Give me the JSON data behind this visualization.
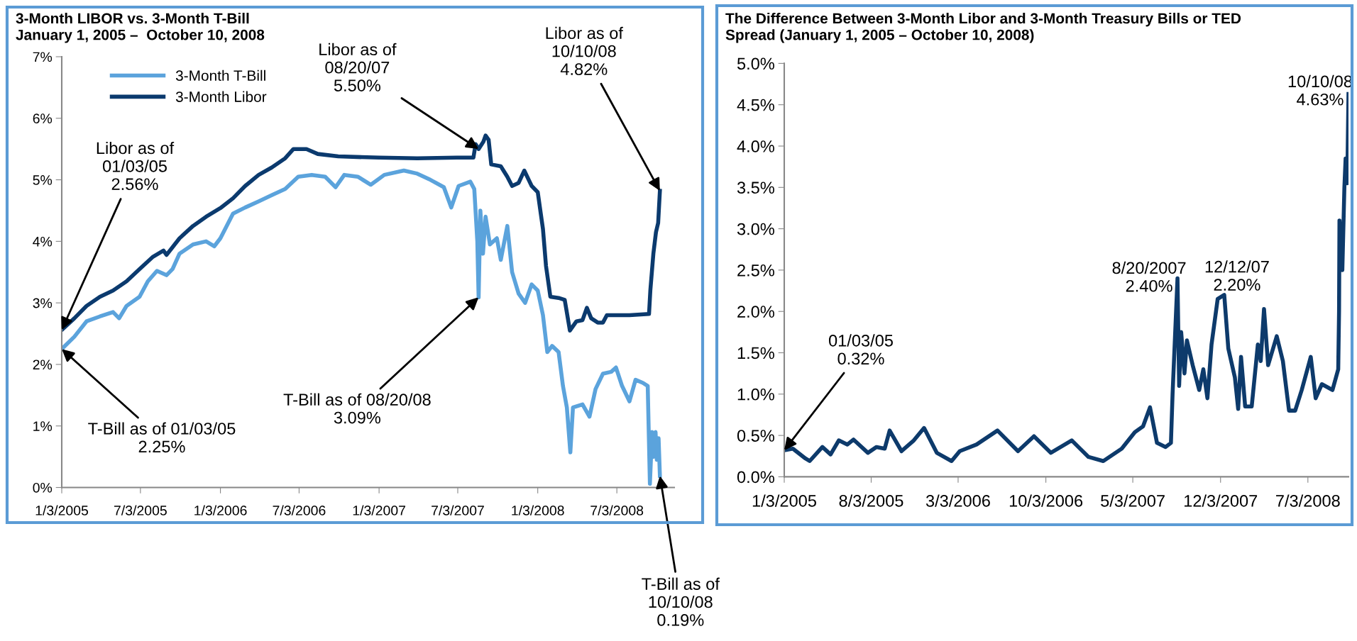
{
  "chart_data": [
    {
      "type": "line",
      "title": "3-Month LIBOR vs. 3-Month T-Bill",
      "subtitle": "January 1, 2005 –  October 10, 2008",
      "legend": "top left",
      "grid": false,
      "marker": "none",
      "line_style": "solid",
      "xlim": [
        "2005-01-03",
        "2008-11-12"
      ],
      "xticks": [
        {
          "value": "2005-01-03",
          "label": "1/3/2005"
        },
        {
          "value": "2005-07-03",
          "label": "7/3/2005"
        },
        {
          "value": "2006-01-03",
          "label": "1/3/2006"
        },
        {
          "value": "2006-07-03",
          "label": "7/3/2006"
        },
        {
          "value": "2007-01-03",
          "label": "1/3/2007"
        },
        {
          "value": "2007-07-03",
          "label": "7/3/2007"
        },
        {
          "value": "2008-01-03",
          "label": "1/3/2008"
        },
        {
          "value": "2008-07-03",
          "label": "7/3/2008"
        }
      ],
      "ylim": [
        0,
        7
      ],
      "yticks": [
        {
          "value": 0,
          "label": "0%"
        },
        {
          "value": 1,
          "label": "1%"
        },
        {
          "value": 2,
          "label": "2%"
        },
        {
          "value": 3,
          "label": "3%"
        },
        {
          "value": 4,
          "label": "4%"
        },
        {
          "value": 5,
          "label": "5%"
        },
        {
          "value": 6,
          "label": "6%"
        },
        {
          "value": 7,
          "label": "7%"
        }
      ],
      "series": [
        {
          "name": "3-Month T-Bill",
          "color": "#5ba3dc",
          "x": [
            "2005-01-03",
            "2005-02-01",
            "2005-03-01",
            "2005-04-01",
            "2005-05-01",
            "2005-05-15",
            "2005-06-01",
            "2005-07-01",
            "2005-07-20",
            "2005-08-10",
            "2005-09-01",
            "2005-09-15",
            "2005-10-01",
            "2005-11-01",
            "2005-12-01",
            "2005-12-20",
            "2006-01-03",
            "2006-02-01",
            "2006-03-01",
            "2006-04-01",
            "2006-05-01",
            "2006-06-01",
            "2006-07-01",
            "2006-08-01",
            "2006-09-01",
            "2006-09-25",
            "2006-10-15",
            "2006-11-15",
            "2006-12-15",
            "2007-01-15",
            "2007-03-01",
            "2007-04-01",
            "2007-05-01",
            "2007-06-01",
            "2007-06-18",
            "2007-07-05",
            "2007-08-01",
            "2007-08-10",
            "2007-08-17",
            "2007-08-20",
            "2007-08-24",
            "2007-08-30",
            "2007-09-05",
            "2007-09-15",
            "2007-10-01",
            "2007-10-10",
            "2007-10-25",
            "2007-11-05",
            "2007-11-20",
            "2007-12-05",
            "2007-12-20",
            "2008-01-03",
            "2008-01-15",
            "2008-01-25",
            "2008-02-05",
            "2008-02-20",
            "2008-03-01",
            "2008-03-10",
            "2008-03-18",
            "2008-03-24",
            "2008-04-15",
            "2008-05-01",
            "2008-05-15",
            "2008-06-01",
            "2008-06-20",
            "2008-07-01",
            "2008-07-15",
            "2008-08-01",
            "2008-08-15",
            "2008-09-01",
            "2008-09-12",
            "2008-09-17",
            "2008-09-22",
            "2008-09-26",
            "2008-09-30",
            "2008-10-03",
            "2008-10-07",
            "2008-10-10"
          ],
          "values": [
            2.25,
            2.45,
            2.7,
            2.78,
            2.85,
            2.75,
            2.95,
            3.1,
            3.35,
            3.52,
            3.45,
            3.55,
            3.8,
            3.95,
            4.0,
            3.92,
            4.05,
            4.45,
            4.55,
            4.65,
            4.75,
            4.85,
            5.05,
            5.08,
            5.05,
            4.88,
            5.08,
            5.05,
            4.92,
            5.08,
            5.15,
            5.1,
            5.0,
            4.88,
            4.55,
            4.9,
            4.97,
            4.85,
            4.0,
            3.09,
            4.5,
            3.8,
            4.4,
            3.95,
            4.05,
            3.7,
            4.25,
            3.5,
            3.15,
            3.0,
            3.3,
            3.2,
            2.8,
            2.2,
            2.3,
            2.2,
            1.65,
            1.3,
            0.57,
            1.3,
            1.35,
            1.15,
            1.6,
            1.85,
            1.88,
            1.95,
            1.65,
            1.4,
            1.75,
            1.7,
            1.65,
            0.06,
            0.9,
            0.5,
            0.9,
            0.45,
            0.8,
            0.19
          ]
        },
        {
          "name": "3-Month Libor",
          "color": "#0b3a6e",
          "x": [
            "2005-01-03",
            "2005-02-01",
            "2005-03-01",
            "2005-04-01",
            "2005-05-01",
            "2005-06-01",
            "2005-07-01",
            "2005-08-01",
            "2005-08-25",
            "2005-09-01",
            "2005-10-01",
            "2005-11-01",
            "2005-12-01",
            "2006-01-03",
            "2006-02-01",
            "2006-03-01",
            "2006-04-01",
            "2006-05-01",
            "2006-06-01",
            "2006-06-20",
            "2006-07-20",
            "2006-08-15",
            "2006-10-01",
            "2007-01-03",
            "2007-04-01",
            "2007-07-01",
            "2007-08-08",
            "2007-08-13",
            "2007-08-20",
            "2007-08-31",
            "2007-09-05",
            "2007-09-12",
            "2007-09-18",
            "2007-10-10",
            "2007-10-25",
            "2007-11-05",
            "2007-11-20",
            "2007-12-03",
            "2007-12-20",
            "2008-01-03",
            "2008-01-15",
            "2008-01-22",
            "2008-02-01",
            "2008-02-20",
            "2008-03-05",
            "2008-03-17",
            "2008-04-01",
            "2008-04-15",
            "2008-04-25",
            "2008-05-05",
            "2008-05-20",
            "2008-06-01",
            "2008-06-10",
            "2008-07-01",
            "2008-08-01",
            "2008-09-15",
            "2008-09-18",
            "2008-09-25",
            "2008-10-01",
            "2008-10-06",
            "2008-10-10"
          ],
          "values": [
            2.56,
            2.75,
            2.95,
            3.1,
            3.2,
            3.35,
            3.55,
            3.75,
            3.85,
            3.78,
            4.05,
            4.25,
            4.4,
            4.54,
            4.7,
            4.9,
            5.08,
            5.2,
            5.35,
            5.5,
            5.5,
            5.42,
            5.38,
            5.36,
            5.35,
            5.36,
            5.36,
            5.58,
            5.5,
            5.62,
            5.72,
            5.65,
            5.25,
            5.22,
            5.05,
            4.9,
            4.95,
            5.15,
            4.9,
            4.8,
            4.2,
            3.6,
            3.1,
            3.08,
            3.05,
            2.55,
            2.7,
            2.72,
            2.92,
            2.75,
            2.68,
            2.68,
            2.8,
            2.8,
            2.8,
            2.82,
            3.2,
            3.8,
            4.15,
            4.3,
            4.82
          ]
        }
      ],
      "annotations": [
        {
          "text": "Libor as of\n01/03/05\n2.56%",
          "x": "2005-01-03",
          "y": 2.56
        },
        {
          "text": "Libor as of\n08/20/07\n5.50%",
          "x": "2007-08-20",
          "y": 5.5
        },
        {
          "text": "Libor as of\n10/10/08\n4.82%",
          "x": "2008-10-10",
          "y": 4.82
        },
        {
          "text": "T-Bill as of 01/03/05\n2.25%",
          "x": "2005-01-03",
          "y": 2.25
        },
        {
          "text": "T-Bill as of 08/20/08\n3.09%",
          "x": "2007-08-20",
          "y": 3.09
        },
        {
          "text": "T-Bill as of\n10/10/08\n0.19%",
          "x": "2008-10-10",
          "y": 0.19
        }
      ]
    },
    {
      "type": "line",
      "title": "The Difference Between 3-Month Libor and 3-Month Treasury Bills or TED\nSpread (January 1, 2005 – October 10, 2008)",
      "grid": false,
      "legend": false,
      "marker": "none",
      "line_style": "solid",
      "xlim": [
        "2005-01-03",
        "2008-10-10"
      ],
      "xticks": [
        {
          "value": "2005-01-03",
          "label": "1/3/2005"
        },
        {
          "value": "2005-08-03",
          "label": "8/3/2005"
        },
        {
          "value": "2006-03-03",
          "label": "3/3/2006"
        },
        {
          "value": "2006-10-03",
          "label": "10/3/2006"
        },
        {
          "value": "2007-05-03",
          "label": "5/3/2007"
        },
        {
          "value": "2007-12-03",
          "label": "12/3/2007"
        },
        {
          "value": "2008-07-03",
          "label": "7/3/2008"
        }
      ],
      "ylim": [
        0,
        5
      ],
      "yticks": [
        {
          "value": 0,
          "label": "0.0%"
        },
        {
          "value": 0.5,
          "label": "0.5%"
        },
        {
          "value": 1,
          "label": "1.0%"
        },
        {
          "value": 1.5,
          "label": "1.5%"
        },
        {
          "value": 2,
          "label": "2.0%"
        },
        {
          "value": 2.5,
          "label": "2.5%"
        },
        {
          "value": 3,
          "label": "3.0%"
        },
        {
          "value": 3.5,
          "label": "3.5%"
        },
        {
          "value": 4,
          "label": "4.0%"
        },
        {
          "value": 4.5,
          "label": "4.5%"
        },
        {
          "value": 5,
          "label": "5.0%"
        }
      ],
      "series": [
        {
          "color": "#0d3a6b",
          "x": [
            "2005-01-03",
            "2005-01-24",
            "2005-02-24",
            "2005-03-06",
            "2005-04-06",
            "2005-04-26",
            "2005-05-16",
            "2005-06-06",
            "2005-06-21",
            "2005-07-26",
            "2005-08-16",
            "2005-09-05",
            "2005-09-17",
            "2005-10-16",
            "2005-11-15",
            "2005-12-10",
            "2006-01-10",
            "2006-02-15",
            "2006-03-07",
            "2006-04-17",
            "2006-06-07",
            "2006-07-27",
            "2006-09-04",
            "2006-10-15",
            "2006-12-05",
            "2007-01-15",
            "2007-02-20",
            "2007-04-06",
            "2007-05-08",
            "2007-05-28",
            "2007-06-14",
            "2007-07-01",
            "2007-07-22",
            "2007-08-04",
            "2007-08-08",
            "2007-08-20",
            "2007-08-24",
            "2007-08-29",
            "2007-09-06",
            "2007-09-12",
            "2007-09-26",
            "2007-10-12",
            "2007-10-22",
            "2007-11-01",
            "2007-11-11",
            "2007-11-26",
            "2007-12-12",
            "2007-12-22",
            "2008-01-07",
            "2008-01-15",
            "2008-01-22",
            "2008-02-01",
            "2008-02-17",
            "2008-03-03",
            "2008-03-10",
            "2008-03-18",
            "2008-03-28",
            "2008-04-18",
            "2008-05-03",
            "2008-05-18",
            "2008-06-02",
            "2008-06-18",
            "2008-07-10",
            "2008-07-22",
            "2008-08-06",
            "2008-09-01",
            "2008-09-15",
            "2008-09-17",
            "2008-09-18",
            "2008-09-25",
            "2008-09-30",
            "2008-10-03",
            "2008-10-07",
            "2008-10-10"
          ],
          "values": [
            0.32,
            0.34,
            0.22,
            0.19,
            0.36,
            0.27,
            0.44,
            0.39,
            0.45,
            0.29,
            0.36,
            0.34,
            0.56,
            0.31,
            0.44,
            0.59,
            0.29,
            0.19,
            0.31,
            0.39,
            0.56,
            0.31,
            0.49,
            0.29,
            0.44,
            0.24,
            0.19,
            0.34,
            0.54,
            0.61,
            0.84,
            0.41,
            0.36,
            0.41,
            1.0,
            2.4,
            1.1,
            1.75,
            1.25,
            1.65,
            1.35,
            1.05,
            1.3,
            0.95,
            1.6,
            2.15,
            2.2,
            1.55,
            1.2,
            0.82,
            1.45,
            0.85,
            0.85,
            1.6,
            1.4,
            2.03,
            1.35,
            1.7,
            1.4,
            0.8,
            0.8,
            1.05,
            1.45,
            0.95,
            1.12,
            1.05,
            1.3,
            2.0,
            3.1,
            2.5,
            3.5,
            3.85,
            3.55,
            4.63
          ]
        }
      ],
      "annotations": [
        {
          "text": "01/03/05\n0.32%",
          "x": "2005-01-03",
          "y": 0.32
        },
        {
          "text": "8/20/2007\n2.40%",
          "x": "2007-08-20",
          "y": 2.4
        },
        {
          "text": "12/12/07\n2.20%",
          "x": "2007-12-12",
          "y": 2.2
        },
        {
          "text": "10/10/08\n4.63%",
          "x": "2008-10-10",
          "y": 4.63
        }
      ]
    }
  ]
}
